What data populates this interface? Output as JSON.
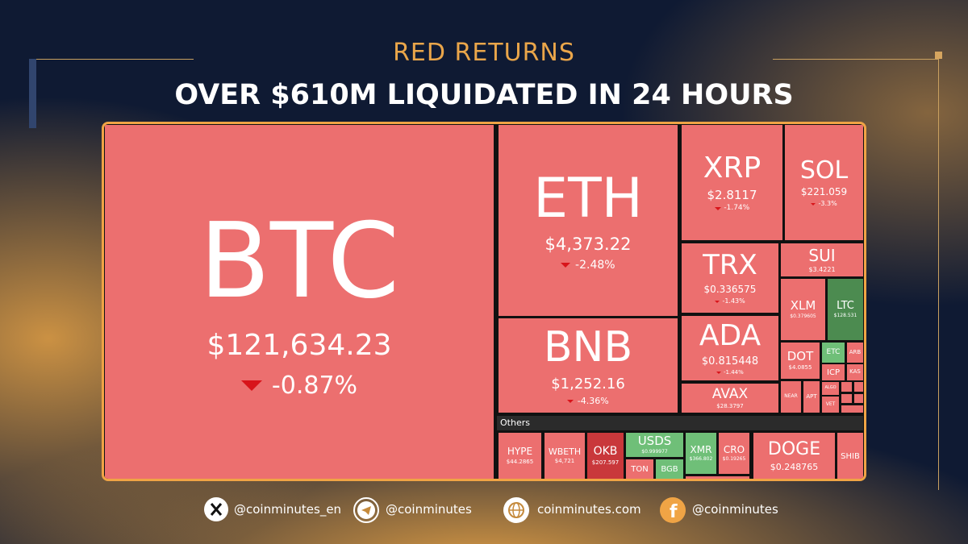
{
  "header": {
    "kicker": "RED RETURNS",
    "title": "OVER $610M LIQUIDATED IN 24 HOURS"
  },
  "heatmap": {
    "tiles": [
      {
        "symbol": "BTC",
        "price": "$121,634.23",
        "change": "-0.87%"
      },
      {
        "symbol": "ETH",
        "price": "$4,373.22",
        "change": "-2.48%"
      },
      {
        "symbol": "BNB",
        "price": "$1,252.16",
        "change": "-4.36%"
      },
      {
        "symbol": "XRP",
        "price": "$2.8117",
        "change": "-1.74%"
      },
      {
        "symbol": "SOL",
        "price": "$221.059",
        "change": "-3.3%"
      },
      {
        "symbol": "TRX",
        "price": "$0.336575",
        "change": "-1.43%"
      },
      {
        "symbol": "ADA",
        "price": "$0.815448",
        "change": "-1.44%"
      },
      {
        "symbol": "AVAX",
        "price": "$28.3797"
      },
      {
        "symbol": "SUI",
        "price": "$3.4221"
      },
      {
        "symbol": "XLM",
        "price": "$0.379605"
      },
      {
        "symbol": "LTC",
        "price": "$128.531"
      },
      {
        "symbol": "DOT",
        "price": "$4.0855"
      },
      {
        "symbol": "ETC"
      },
      {
        "symbol": "ARB"
      },
      {
        "symbol": "ICP"
      },
      {
        "symbol": "KAS"
      },
      {
        "symbol": "NEAR"
      },
      {
        "symbol": "APT"
      },
      {
        "symbol": "ALGO"
      },
      {
        "symbol": "VET"
      }
    ],
    "others_label": "Others",
    "others": [
      {
        "symbol": "HYPE",
        "price": "$44.2865"
      },
      {
        "symbol": "WBETH",
        "price": "$4,721"
      },
      {
        "symbol": "OKB",
        "price": "$207.597"
      },
      {
        "symbol": "USDS",
        "price": "$0.999977"
      },
      {
        "symbol": "TON"
      },
      {
        "symbol": "BGB"
      },
      {
        "symbol": "XMR",
        "price": "$366.802"
      },
      {
        "symbol": "CRO",
        "price": "$0.19265"
      },
      {
        "symbol": "DOGE",
        "price": "$0.248765"
      },
      {
        "symbol": "SHIB"
      }
    ]
  },
  "footer": {
    "x": "@coinminutes_en",
    "telegram": "@coinminutes",
    "website": "coinminutes.com",
    "facebook": "@coinminutes"
  }
}
